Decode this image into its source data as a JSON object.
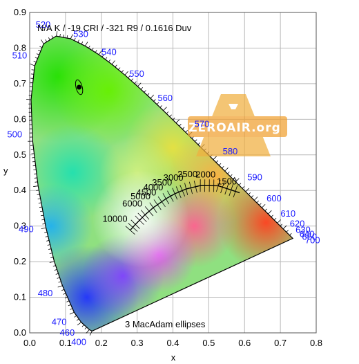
{
  "chart_data": {
    "type": "scatter",
    "title": "N/A K / -19 CRI / -321 R9 / 0.1616 Duv",
    "xlabel": "x",
    "ylabel": "y",
    "xlim": [
      0,
      0.8
    ],
    "ylim": [
      0,
      0.9
    ],
    "x_ticks": [
      "0.0",
      "0.1",
      "0.2",
      "0.3",
      "0.4",
      "0.5",
      "0.6",
      "0.7",
      "0.8"
    ],
    "y_ticks": [
      "0.0",
      "0.1",
      "0.2",
      "0.3",
      "0.4",
      "0.5",
      "0.6",
      "0.7",
      "0.8",
      "0.9"
    ],
    "grid": true,
    "spectral_locus": [
      [
        0.1741,
        0.005
      ],
      [
        0.1666,
        0.0089
      ],
      [
        0.144,
        0.0297
      ],
      [
        0.1241,
        0.0578
      ],
      [
        0.0913,
        0.1327
      ],
      [
        0.0687,
        0.2007
      ],
      [
        0.0454,
        0.295
      ],
      [
        0.0235,
        0.4127
      ],
      [
        0.0082,
        0.5384
      ],
      [
        0.0039,
        0.6548
      ],
      [
        0.0139,
        0.7502
      ],
      [
        0.0389,
        0.812
      ],
      [
        0.0743,
        0.8338
      ],
      [
        0.1142,
        0.8262
      ],
      [
        0.1547,
        0.8059
      ],
      [
        0.1929,
        0.7816
      ],
      [
        0.2296,
        0.7543
      ],
      [
        0.2658,
        0.7243
      ],
      [
        0.3016,
        0.6923
      ],
      [
        0.3373,
        0.6589
      ],
      [
        0.3731,
        0.6245
      ],
      [
        0.4087,
        0.5896
      ],
      [
        0.4441,
        0.5547
      ],
      [
        0.4788,
        0.5202
      ],
      [
        0.5125,
        0.4866
      ],
      [
        0.5448,
        0.4544
      ],
      [
        0.5752,
        0.4242
      ],
      [
        0.6029,
        0.3965
      ],
      [
        0.627,
        0.3725
      ],
      [
        0.6482,
        0.3514
      ],
      [
        0.6658,
        0.334
      ],
      [
        0.6915,
        0.3083
      ],
      [
        0.7079,
        0.292
      ],
      [
        0.7347,
        0.2653
      ]
    ],
    "wavelength_labels": [
      {
        "text": "400",
        "x": 0.1733,
        "y": 0.0048
      },
      {
        "text": "460",
        "x": 0.144,
        "y": 0.0297
      },
      {
        "text": "470",
        "x": 0.1241,
        "y": 0.0578
      },
      {
        "text": "480",
        "x": 0.0913,
        "y": 0.1327
      },
      {
        "text": "490",
        "x": 0.0454,
        "y": 0.295
      },
      {
        "text": "500",
        "x": 0.0082,
        "y": 0.5384
      },
      {
        "text": "510",
        "x": 0.0139,
        "y": 0.7502
      },
      {
        "text": "520",
        "x": 0.0743,
        "y": 0.8338
      },
      {
        "text": "530",
        "x": 0.1547,
        "y": 0.8059
      },
      {
        "text": "540",
        "x": 0.2296,
        "y": 0.7543
      },
      {
        "text": "550",
        "x": 0.3016,
        "y": 0.6923
      },
      {
        "text": "560",
        "x": 0.3731,
        "y": 0.6245
      },
      {
        "text": "570",
        "x": 0.4441,
        "y": 0.5547
      },
      {
        "text": "580",
        "x": 0.5125,
        "y": 0.4866
      },
      {
        "text": "590",
        "x": 0.5752,
        "y": 0.4242
      },
      {
        "text": "600",
        "x": 0.627,
        "y": 0.3725
      },
      {
        "text": "610",
        "x": 0.6658,
        "y": 0.334
      },
      {
        "text": "620",
        "x": 0.6915,
        "y": 0.3083
      },
      {
        "text": "630",
        "x": 0.7079,
        "y": 0.292
      },
      {
        "text": "640",
        "x": 0.719,
        "y": 0.2809
      },
      {
        "text": "650",
        "x": 0.726,
        "y": 0.274
      },
      {
        "text": "700",
        "x": 0.7347,
        "y": 0.2653
      }
    ],
    "planckian_locus": [
      [
        0.2807,
        0.2883
      ],
      [
        0.2952,
        0.3048
      ],
      [
        0.3068,
        0.3164
      ],
      [
        0.3221,
        0.3318
      ],
      [
        0.3451,
        0.3516
      ],
      [
        0.3805,
        0.3768
      ],
      [
        0.4053,
        0.3907
      ],
      [
        0.4369,
        0.4041
      ],
      [
        0.4764,
        0.4137
      ],
      [
        0.5267,
        0.4133
      ],
      [
        0.5863,
        0.3935
      ]
    ],
    "cct_labels": [
      {
        "text": "10000",
        "x": 0.2807,
        "y": 0.2883
      },
      {
        "text": "6000",
        "x": 0.3221,
        "y": 0.3318
      },
      {
        "text": "5000",
        "x": 0.3451,
        "y": 0.3516
      },
      {
        "text": "4500",
        "x": 0.3613,
        "y": 0.363
      },
      {
        "text": "4000",
        "x": 0.3805,
        "y": 0.3768
      },
      {
        "text": "3500",
        "x": 0.4053,
        "y": 0.3907
      },
      {
        "text": "3000",
        "x": 0.4369,
        "y": 0.4041
      },
      {
        "text": "2500",
        "x": 0.4764,
        "y": 0.4137
      },
      {
        "text": "2000",
        "x": 0.5267,
        "y": 0.4133
      },
      {
        "text": "1500",
        "x": 0.5863,
        "y": 0.3935
      }
    ],
    "measured_point": {
      "x": 0.138,
      "y": 0.69
    },
    "annotation": "3  MacAdam ellipses",
    "watermark": "ZEROAIR.org"
  }
}
